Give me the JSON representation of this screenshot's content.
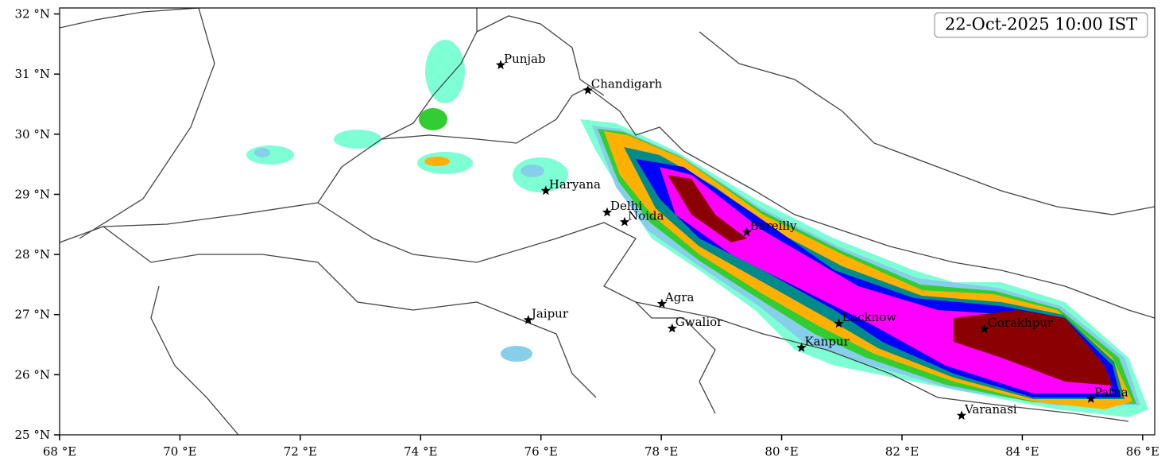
{
  "chart_data": {
    "type": "map",
    "title": "22-Oct-2025 10:00 IST",
    "xlim": [
      68,
      86.2
    ],
    "ylim": [
      25,
      32.1
    ],
    "xticks": [
      {
        "value": 68,
        "label": "68 °E"
      },
      {
        "value": 70,
        "label": "70 °E"
      },
      {
        "value": 72,
        "label": "72 °E"
      },
      {
        "value": 74,
        "label": "74 °E"
      },
      {
        "value": 76,
        "label": "76 °E"
      },
      {
        "value": 78,
        "label": "78 °E"
      },
      {
        "value": 80,
        "label": "80 °E"
      },
      {
        "value": 82,
        "label": "82 °E"
      },
      {
        "value": 84,
        "label": "84 °E"
      },
      {
        "value": 86,
        "label": "86 °E"
      }
    ],
    "yticks": [
      {
        "value": 25,
        "label": "25 °N"
      },
      {
        "value": 26,
        "label": "26 °N"
      },
      {
        "value": 27,
        "label": "27 °N"
      },
      {
        "value": 28,
        "label": "28 °N"
      },
      {
        "value": 29,
        "label": "29 °N"
      },
      {
        "value": 30,
        "label": "30 °N"
      },
      {
        "value": 31,
        "label": "31 °N"
      },
      {
        "value": 32,
        "label": "32 °N"
      }
    ],
    "cities": [
      {
        "name": "Punjab",
        "lon": 75.33,
        "lat": 31.15
      },
      {
        "name": "Chandigarh",
        "lon": 76.78,
        "lat": 30.73
      },
      {
        "name": "Haryana",
        "lon": 76.08,
        "lat": 29.06
      },
      {
        "name": "Delhi",
        "lon": 77.1,
        "lat": 28.7
      },
      {
        "name": "Noida",
        "lon": 77.39,
        "lat": 28.54
      },
      {
        "name": "Bareilly",
        "lon": 79.42,
        "lat": 28.37
      },
      {
        "name": "Agra",
        "lon": 78.01,
        "lat": 27.18
      },
      {
        "name": "Jaipur",
        "lon": 75.79,
        "lat": 26.91
      },
      {
        "name": "Gwalior",
        "lon": 78.18,
        "lat": 26.77
      },
      {
        "name": "Lucknow",
        "lon": 80.95,
        "lat": 26.85
      },
      {
        "name": "Kanpur",
        "lon": 80.33,
        "lat": 26.45
      },
      {
        "name": "Gorakhpur",
        "lon": 83.37,
        "lat": 26.76
      },
      {
        "name": "Patna",
        "lon": 85.14,
        "lat": 25.6
      },
      {
        "name": "Varanasi",
        "lon": 82.99,
        "lat": 25.32
      }
    ]
  }
}
